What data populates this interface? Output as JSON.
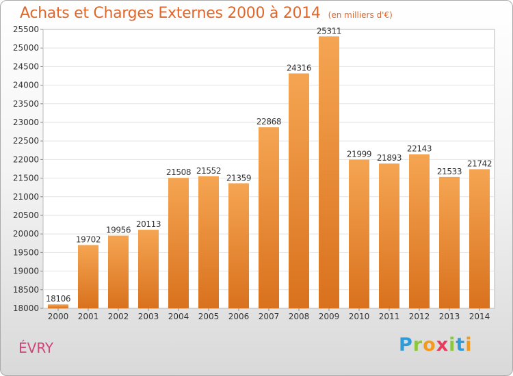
{
  "header": {
    "title": "Achats et Charges Externes 2000 à 2014",
    "subtitle": "(en milliers d'€)"
  },
  "footer": {
    "city": "ÉVRY",
    "logo_letters": [
      "P",
      "r",
      "o",
      "x",
      "i",
      "t",
      "i"
    ],
    "logo_colors": [
      "#2f9ad8",
      "#8cc63e",
      "#f39a1e",
      "#e63b5c",
      "#8cc63e",
      "#2f9ad8",
      "#f39a1e"
    ]
  },
  "chart_data": {
    "type": "bar",
    "title": "Achats et Charges Externes 2000 à 2014",
    "subtitle": "(en milliers d'€)",
    "categories": [
      "2000",
      "2001",
      "2002",
      "2003",
      "2004",
      "2005",
      "2006",
      "2007",
      "2008",
      "2009",
      "2010",
      "2011",
      "2012",
      "2013",
      "2014"
    ],
    "values": [
      18106,
      19702,
      19956,
      20113,
      21508,
      21552,
      21359,
      22868,
      24316,
      25311,
      21999,
      21893,
      22143,
      21533,
      21742
    ],
    "ylim": [
      18000,
      25500
    ],
    "yticks": [
      18000,
      18500,
      19000,
      19500,
      20000,
      20500,
      21000,
      21500,
      22000,
      22500,
      23000,
      23500,
      24000,
      24500,
      25000,
      25500
    ],
    "grid": true,
    "bar_color_top": "#f5a552",
    "bar_color_bottom": "#d9711d"
  }
}
